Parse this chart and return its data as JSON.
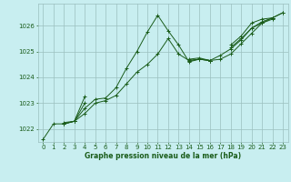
{
  "bg_color": "#c8eef0",
  "grid_color": "#9bbfbf",
  "line_color": "#1a5c1a",
  "title": "Graphe pression niveau de la mer (hPa)",
  "ylim": [
    1021.5,
    1026.85
  ],
  "xlim": [
    -0.5,
    23.5
  ],
  "yticks": [
    1022,
    1023,
    1024,
    1025,
    1026
  ],
  "xticks": [
    0,
    1,
    2,
    3,
    4,
    5,
    6,
    7,
    8,
    9,
    10,
    11,
    12,
    13,
    14,
    15,
    16,
    17,
    18,
    19,
    20,
    21,
    22,
    23
  ],
  "line1": [
    1021.6,
    1022.2,
    1022.2,
    1022.3,
    1022.8,
    1023.15,
    1023.2,
    1023.6,
    1024.35,
    1025.0,
    1025.75,
    1026.4,
    1025.8,
    1025.25,
    1024.6,
    1024.7,
    1024.65,
    1024.7,
    1024.9,
    1025.3,
    1025.7,
    1026.1,
    1026.3,
    1026.5
  ],
  "line2": [
    null,
    null,
    1022.2,
    1022.3,
    1023.25,
    null,
    null,
    null,
    null,
    null,
    null,
    null,
    null,
    null,
    1024.7,
    1024.75,
    1024.65,
    null,
    1025.25,
    1025.6,
    1026.1,
    1026.25,
    1026.3,
    null
  ],
  "line3": [
    null,
    null,
    1022.2,
    1022.3,
    1023.0,
    null,
    null,
    null,
    null,
    null,
    null,
    null,
    null,
    null,
    1024.65,
    1024.7,
    1024.65,
    null,
    1025.15,
    1025.5,
    1025.9,
    1026.1,
    1026.25,
    null
  ],
  "line4": [
    null,
    null,
    1022.25,
    1022.3,
    1022.6,
    1023.0,
    1023.1,
    1023.3,
    1023.75,
    1024.2,
    1024.5,
    1024.9,
    1025.5,
    1024.9,
    1024.65,
    1024.7,
    1024.65,
    1024.85,
    1025.1,
    1025.45,
    1025.9,
    1026.15,
    1026.3,
    1026.5
  ],
  "tick_fontsize": 5.0,
  "xlabel_fontsize": 5.5,
  "lw": 0.7,
  "ms": 2.5
}
